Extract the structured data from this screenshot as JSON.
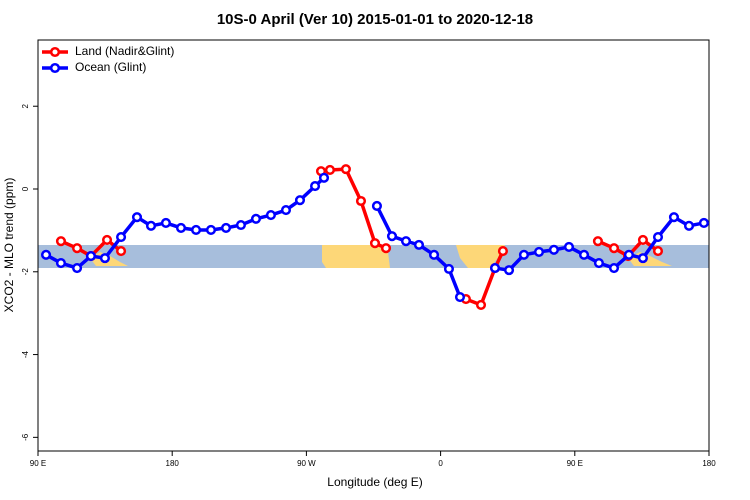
{
  "chart_data": {
    "type": "line",
    "title": "10S-0 April (Ver 10)   2015-01-01 to 2020-12-18",
    "x_label": "Longitude (deg E)",
    "y_label": "XCO2 - MLO trend (ppm)",
    "xlim": [
      90,
      540
    ],
    "ylim": [
      -6.33,
      3.6
    ],
    "xticks": [
      {
        "value": 90,
        "label": "90 E"
      },
      {
        "value": 180,
        "label": "180"
      },
      {
        "value": 270,
        "label": "90 W"
      },
      {
        "value": 360,
        "label": "0"
      },
      {
        "value": 450,
        "label": "90 E"
      },
      {
        "value": 540,
        "label": "180"
      }
    ],
    "yticks": [
      2,
      0,
      -2,
      -4,
      -6
    ],
    "legend": "top-left",
    "series": [
      {
        "name": "Land (Nadir&Glint)",
        "color": "#ff0000",
        "x": [
          105.4,
          116.2,
          125.5,
          136.3,
          145.7,
          null,
          279.8,
          285.8,
          296.5,
          306.6,
          316,
          323.4,
          null,
          377,
          387.1,
          396.5,
          401.8,
          null,
          465.5,
          476.3,
          485.7,
          495.7,
          505.8
        ],
        "values": [
          -1.26,
          -1.43,
          -1.62,
          -1.23,
          -1.5,
          null,
          0.43,
          0.46,
          0.48,
          -0.29,
          -1.31,
          -1.43,
          null,
          -2.66,
          -2.8,
          -1.91,
          -1.5,
          null,
          -1.26,
          -1.43,
          -1.62,
          -1.23,
          -1.5
        ]
      },
      {
        "name": "Ocean (Glint)",
        "color": "#0000ff",
        "x": [
          95.4,
          105.4,
          116.2,
          125.5,
          134.9,
          145.7,
          156.4,
          165.8,
          175.8,
          185.9,
          196,
          206,
          216.1,
          226.1,
          236.2,
          246.2,
          256.3,
          265.7,
          275.8,
          281.8,
          null,
          317.3,
          327.4,
          336.8,
          345.5,
          355.6,
          365.6,
          373,
          null,
          396.5,
          405.9,
          415.9,
          426,
          436,
          446.1,
          456.2,
          466.2,
          476.3,
          486.3,
          495.7,
          505.8,
          516.5,
          526.6,
          536.6
        ],
        "values": [
          -1.59,
          -1.79,
          -1.91,
          -1.62,
          -1.67,
          -1.16,
          -0.68,
          -0.89,
          -0.82,
          -0.94,
          -0.99,
          -0.99,
          -0.94,
          -0.87,
          -0.72,
          -0.63,
          -0.51,
          -0.27,
          0.07,
          0.27,
          null,
          -0.41,
          -1.14,
          -1.26,
          -1.35,
          -1.59,
          -1.93,
          -2.61,
          null,
          -1.91,
          -1.96,
          -1.59,
          -1.52,
          -1.47,
          -1.4,
          -1.59,
          -1.79,
          -1.91,
          -1.59,
          -1.67,
          -1.16,
          -0.68,
          -0.89,
          -0.82
        ]
      }
    ]
  }
}
